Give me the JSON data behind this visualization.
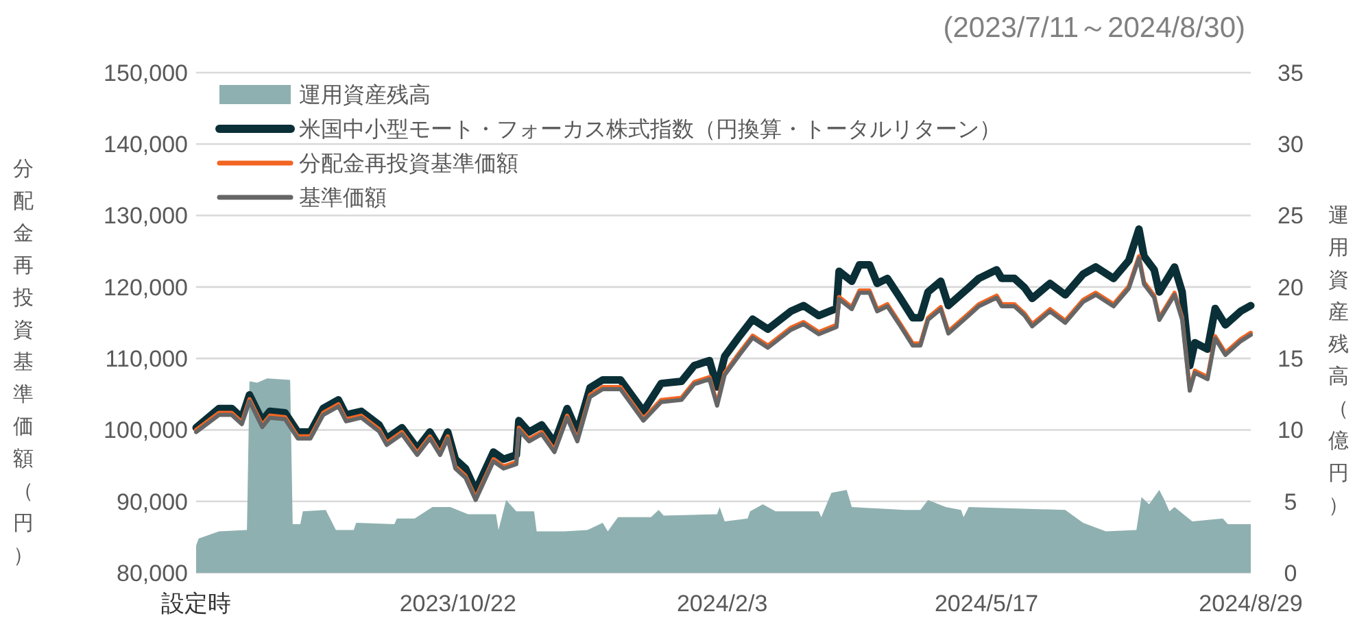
{
  "chart_data": {
    "type": "line",
    "subtitle": "(2023/7/11～2024/8/30)",
    "ylabel": "分配金再投資基準価額（円）",
    "y2label": "運用資産残高（億円）",
    "xlim": [
      "2023-07-11",
      "2024-08-29"
    ],
    "xticks": [
      {
        "value": "2023-07-11",
        "label": "設定時"
      },
      {
        "value": "2023-10-22",
        "label": "2023/10/22"
      },
      {
        "value": "2024-02-03",
        "label": "2024/2/3"
      },
      {
        "value": "2024-05-17",
        "label": "2024/5/17"
      },
      {
        "value": "2024-08-29",
        "label": "2024/8/29"
      }
    ],
    "ylim": [
      80000,
      150000
    ],
    "yticks": [
      {
        "value": 80000,
        "label": "80,000"
      },
      {
        "value": 90000,
        "label": "90,000"
      },
      {
        "value": 100000,
        "label": "100,000"
      },
      {
        "value": 110000,
        "label": "110,000"
      },
      {
        "value": 120000,
        "label": "120,000"
      },
      {
        "value": 130000,
        "label": "130,000"
      },
      {
        "value": 140000,
        "label": "140,000"
      },
      {
        "value": 150000,
        "label": "150,000"
      }
    ],
    "y2lim": [
      0,
      35
    ],
    "y2ticks": [
      0,
      5,
      10,
      15,
      20,
      25,
      30,
      35
    ],
    "grid": "y",
    "legend": "top left",
    "x": [
      "2023-07-11",
      "2023-07-20",
      "2023-07-25",
      "2023-07-29",
      "2023-08-01",
      "2023-08-06",
      "2023-08-09",
      "2023-08-15",
      "2023-08-20",
      "2023-08-25",
      "2023-08-30",
      "2023-09-05",
      "2023-09-08",
      "2023-09-14",
      "2023-09-21",
      "2023-09-24",
      "2023-09-30",
      "2023-10-06",
      "2023-10-11",
      "2023-10-15",
      "2023-10-18",
      "2023-10-21",
      "2023-10-25",
      "2023-10-29",
      "2023-11-05",
      "2023-11-09",
      "2023-11-14",
      "2023-11-15",
      "2023-11-19",
      "2023-11-24",
      "2023-11-29",
      "2023-12-04",
      "2023-12-08",
      "2023-12-13",
      "2023-12-18",
      "2023-12-25",
      "2024-01-03",
      "2024-01-10",
      "2024-01-18",
      "2024-01-23",
      "2024-01-29",
      "2024-02-01",
      "2024-02-04",
      "2024-02-10",
      "2024-02-15",
      "2024-02-21",
      "2024-03-01",
      "2024-03-06",
      "2024-03-12",
      "2024-03-19",
      "2024-03-20",
      "2024-03-25",
      "2024-03-28",
      "2024-04-01",
      "2024-04-04",
      "2024-04-08",
      "2024-04-13",
      "2024-04-18",
      "2024-04-21",
      "2024-04-24",
      "2024-04-29",
      "2024-05-02",
      "2024-05-10",
      "2024-05-14",
      "2024-05-21",
      "2024-05-23",
      "2024-05-28",
      "2024-06-01",
      "2024-06-04",
      "2024-06-11",
      "2024-06-17",
      "2024-06-24",
      "2024-06-29",
      "2024-07-06",
      "2024-07-12",
      "2024-07-16",
      "2024-07-18",
      "2024-07-22",
      "2024-07-24",
      "2024-07-30",
      "2024-08-02",
      "2024-08-05",
      "2024-08-07",
      "2024-08-12",
      "2024-08-15",
      "2024-08-19",
      "2024-08-25",
      "2024-08-29"
    ],
    "series": [
      {
        "name": "運用資産残高",
        "type": "area",
        "axis": "y2",
        "color": "#8fb0b0",
        "x": [
          "2023-07-11",
          "2023-07-12",
          "2023-07-20",
          "2023-07-31",
          "2023-08-01",
          "2023-08-04",
          "2023-08-08",
          "2023-08-17",
          "2023-08-18",
          "2023-08-21",
          "2023-08-22",
          "2023-08-31",
          "2023-09-04",
          "2023-09-11",
          "2023-09-12",
          "2023-09-27",
          "2023-09-28",
          "2023-10-05",
          "2023-10-12",
          "2023-10-19",
          "2023-10-26",
          "2023-11-06",
          "2023-11-07",
          "2023-11-10",
          "2023-11-14",
          "2023-11-21",
          "2023-11-22",
          "2023-12-03",
          "2023-12-12",
          "2023-12-18",
          "2023-12-20",
          "2023-12-24",
          "2024-01-06",
          "2024-01-09",
          "2024-01-11",
          "2024-02-01",
          "2024-02-02",
          "2024-02-04",
          "2024-02-13",
          "2024-02-14",
          "2024-02-19",
          "2024-02-24",
          "2024-03-12",
          "2024-03-13",
          "2024-03-17",
          "2024-03-23",
          "2024-03-25",
          "2024-04-15",
          "2024-04-21",
          "2024-04-24",
          "2024-05-01",
          "2024-05-07",
          "2024-05-08",
          "2024-05-10",
          "2024-06-17",
          "2024-06-24",
          "2024-07-03",
          "2024-07-15",
          "2024-07-17",
          "2024-07-20",
          "2024-07-24",
          "2024-07-26",
          "2024-07-28",
          "2024-07-30",
          "2024-08-06",
          "2024-08-18",
          "2024-08-20",
          "2024-08-29"
        ],
        "values": [
          1.9,
          2.4,
          2.9,
          3.0,
          13.4,
          13.3,
          13.6,
          13.5,
          3.4,
          3.4,
          4.3,
          4.4,
          3.0,
          3.0,
          3.5,
          3.4,
          3.8,
          3.8,
          4.6,
          4.6,
          4.1,
          4.1,
          3.0,
          5.1,
          4.3,
          4.3,
          2.9,
          2.9,
          3.0,
          3.5,
          2.9,
          3.9,
          3.9,
          4.4,
          4.0,
          4.1,
          4.6,
          3.6,
          3.8,
          4.3,
          4.8,
          4.3,
          4.3,
          3.9,
          5.6,
          5.8,
          4.6,
          4.4,
          4.4,
          5.1,
          4.6,
          4.4,
          3.9,
          4.6,
          4.4,
          3.5,
          2.9,
          3.0,
          5.3,
          4.8,
          5.8,
          5.1,
          4.3,
          4.6,
          3.6,
          3.8,
          3.4,
          3.4
        ]
      },
      {
        "name": "米国中小型モート・フォーカス株式指数（円換算・トータルリターン）",
        "type": "line",
        "color": "#0a2f36",
        "values": [
          100300,
          103000,
          103000,
          101700,
          104900,
          101300,
          102600,
          102400,
          99700,
          99700,
          103000,
          104200,
          102100,
          102600,
          100700,
          98800,
          100300,
          97400,
          99700,
          97400,
          99700,
          95900,
          94600,
          91500,
          96900,
          95900,
          96500,
          101300,
          99700,
          100700,
          98200,
          103000,
          99700,
          105900,
          107000,
          107000,
          102600,
          106500,
          106800,
          109000,
          109700,
          106000,
          110300,
          113200,
          115500,
          114100,
          116600,
          117400,
          116000,
          117000,
          122200,
          120800,
          123100,
          123100,
          120500,
          121200,
          118500,
          115700,
          115700,
          119300,
          120800,
          117400,
          119900,
          121200,
          122400,
          121200,
          121200,
          119900,
          118400,
          120500,
          118900,
          121800,
          122800,
          121200,
          123700,
          128100,
          124300,
          122400,
          119300,
          122800,
          119300,
          109000,
          112200,
          111300,
          117000,
          114700,
          116600,
          117400
        ]
      },
      {
        "name": "分配金再投資基準価額",
        "type": "line",
        "color": "#f26522",
        "values": [
          100000,
          102400,
          102400,
          101100,
          104300,
          100700,
          102000,
          101800,
          99100,
          99100,
          102400,
          103600,
          101500,
          102000,
          100100,
          98200,
          99700,
          96800,
          99100,
          96800,
          99100,
          94900,
          93600,
          90500,
          95900,
          94900,
          95500,
          100300,
          98700,
          99700,
          97200,
          102000,
          98700,
          104900,
          106000,
          106000,
          101600,
          104200,
          104500,
          106700,
          107400,
          103700,
          108000,
          110900,
          113200,
          111800,
          114300,
          115100,
          113700,
          114700,
          118600,
          117200,
          119500,
          119500,
          116900,
          117600,
          114900,
          112100,
          112100,
          115700,
          117200,
          113800,
          116300,
          117600,
          118800,
          117600,
          117600,
          116300,
          114800,
          116900,
          115300,
          118200,
          119200,
          117600,
          120100,
          124300,
          120700,
          118800,
          115700,
          119200,
          115700,
          105800,
          108300,
          107400,
          113100,
          110800,
          112700,
          113600
        ]
      },
      {
        "name": "基準価額",
        "type": "line",
        "color": "#666666",
        "values": [
          99700,
          102100,
          102100,
          100800,
          104000,
          100400,
          101700,
          101500,
          98800,
          98800,
          102100,
          103300,
          101200,
          101700,
          99800,
          97900,
          99400,
          96500,
          98800,
          96500,
          98800,
          94600,
          93300,
          90200,
          95600,
          94600,
          95200,
          100000,
          98400,
          99400,
          96900,
          101700,
          98400,
          104600,
          105700,
          105700,
          101300,
          103900,
          104200,
          106400,
          107100,
          103400,
          107700,
          110600,
          112900,
          111500,
          114000,
          114800,
          113400,
          114400,
          118300,
          116900,
          119200,
          119200,
          116600,
          117300,
          114600,
          111800,
          111800,
          115400,
          116900,
          113500,
          116000,
          117300,
          118500,
          117300,
          117300,
          116000,
          114500,
          116600,
          115000,
          117900,
          118900,
          117300,
          119800,
          124000,
          120400,
          118500,
          115400,
          118900,
          115400,
          105500,
          108000,
          107100,
          112800,
          110500,
          112400,
          113300
        ]
      }
    ]
  }
}
